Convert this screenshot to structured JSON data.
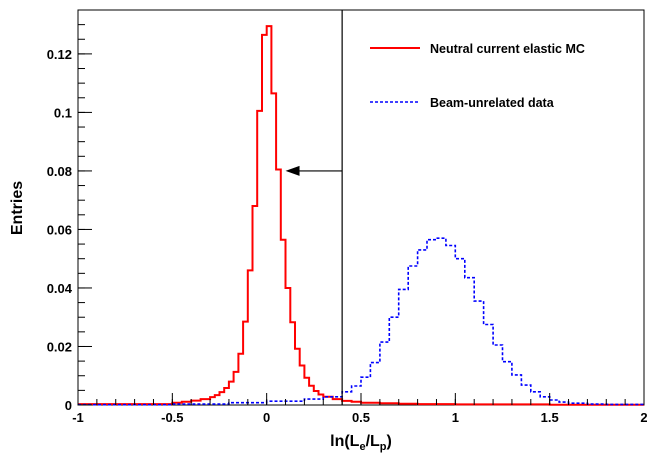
{
  "chart_data": {
    "type": "line",
    "title": "",
    "xlabel": "ln(L_e/L_p)",
    "xlabel_parts": {
      "main": "ln(L",
      "sub1": "e",
      "mid": "/L",
      "sub2": "p",
      "end": ")"
    },
    "ylabel": "Entries",
    "xlim": [
      -1,
      2
    ],
    "ylim": [
      0,
      0.135
    ],
    "x_ticks": [
      {
        "value": -1,
        "label": "-1"
      },
      {
        "value": -0.5,
        "label": "-0.5"
      },
      {
        "value": 0,
        "label": "0"
      },
      {
        "value": 0.5,
        "label": "0.5"
      },
      {
        "value": 1,
        "label": "1"
      },
      {
        "value": 1.5,
        "label": "1.5"
      },
      {
        "value": 2,
        "label": "2"
      }
    ],
    "y_ticks": [
      {
        "value": 0,
        "label": "0"
      },
      {
        "value": 0.02,
        "label": "0.02"
      },
      {
        "value": 0.04,
        "label": "0.04"
      },
      {
        "value": 0.06,
        "label": "0.06"
      },
      {
        "value": 0.08,
        "label": "0.08"
      },
      {
        "value": 0.1,
        "label": "0.1"
      },
      {
        "value": 0.12,
        "label": "0.12"
      }
    ],
    "grid": false,
    "legend_position": "top-right",
    "cut_line": {
      "x": 0.4,
      "arrow_from_x": 0.4,
      "arrow_to_x": 0.1,
      "arrow_y": 0.08
    },
    "series": [
      {
        "name": "Neutral current elastic MC",
        "color": "#ff0000",
        "style": "solid",
        "x": [
          -1.0,
          -0.5,
          -0.45,
          -0.4,
          -0.35,
          -0.3,
          -0.275,
          -0.25,
          -0.225,
          -0.2,
          -0.175,
          -0.15,
          -0.125,
          -0.1,
          -0.075,
          -0.05,
          -0.025,
          0.0,
          0.025,
          0.05,
          0.075,
          0.1,
          0.125,
          0.15,
          0.175,
          0.2,
          0.225,
          0.25,
          0.275,
          0.3,
          0.35,
          0.4,
          0.45,
          0.5,
          0.6,
          0.7,
          0.8,
          1.0,
          1.5,
          2.0
        ],
        "y": [
          0.0003,
          0.0008,
          0.0011,
          0.0015,
          0.002,
          0.0027,
          0.0034,
          0.0044,
          0.0058,
          0.008,
          0.0113,
          0.0175,
          0.0285,
          0.046,
          0.068,
          0.1005,
          0.1265,
          0.1295,
          0.1065,
          0.0805,
          0.0565,
          0.04,
          0.0283,
          0.0192,
          0.0135,
          0.0093,
          0.0066,
          0.0048,
          0.0036,
          0.0028,
          0.002,
          0.0014,
          0.0011,
          0.0008,
          0.0006,
          0.0004,
          0.0003,
          0.0002,
          0.0001,
          0.0001
        ]
      },
      {
        "name": "Beam-unrelated data",
        "color": "#0000ff",
        "style": "dashed",
        "x": [
          -1.0,
          -0.5,
          -0.2,
          0.0,
          0.2,
          0.3,
          0.4,
          0.45,
          0.5,
          0.55,
          0.6,
          0.65,
          0.7,
          0.75,
          0.8,
          0.85,
          0.9,
          0.95,
          1.0,
          1.05,
          1.1,
          1.15,
          1.2,
          1.25,
          1.3,
          1.35,
          1.4,
          1.45,
          1.5,
          1.55,
          1.6,
          1.7,
          1.8,
          2.0
        ],
        "y": [
          0.0001,
          0.0003,
          0.0008,
          0.0013,
          0.002,
          0.0028,
          0.0045,
          0.0065,
          0.0095,
          0.0145,
          0.0215,
          0.03,
          0.0395,
          0.0475,
          0.053,
          0.0565,
          0.057,
          0.0545,
          0.05,
          0.0435,
          0.0355,
          0.0275,
          0.0205,
          0.0148,
          0.0103,
          0.0068,
          0.0045,
          0.0028,
          0.0017,
          0.001,
          0.0006,
          0.0003,
          0.0002,
          0.0001
        ]
      }
    ]
  }
}
